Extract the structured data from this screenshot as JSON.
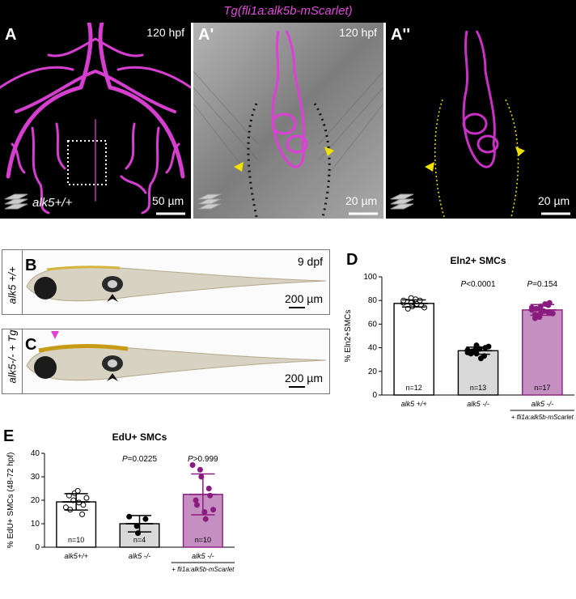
{
  "header": {
    "title": "Tg(fli1a:alk5b-mScarlet)"
  },
  "panels_top": {
    "A": {
      "label": "A",
      "time": "120 hpf",
      "genotype": "alk5+/+",
      "scale": "50 µm"
    },
    "A1": {
      "label": "A'",
      "time": "120 hpf",
      "scale": "20 µm"
    },
    "A2": {
      "label": "A''",
      "scale": "20 µm"
    }
  },
  "fish": {
    "B": {
      "label": "B",
      "side": "alk5 +/+",
      "age": "9 dpf",
      "scale": "200 µm"
    },
    "C": {
      "label": "C",
      "side": "alk5-/- + Tg",
      "scale": "200 µm"
    }
  },
  "colors": {
    "magenta": "#d63ed0",
    "purple": "#8b1c7f",
    "lightpurple": "#c58fc2",
    "gray": "#d9d9d9",
    "arrow_yellow": "#f2e000"
  },
  "chart_data": [
    {
      "panel": "D",
      "type": "bar",
      "title": "Eln2+ SMCs",
      "ylabel": "% Eln2+SMCs",
      "ylim": [
        0,
        100
      ],
      "yticks": [
        "0",
        "20",
        "40",
        "60",
        "80",
        "100"
      ],
      "categories": [
        "alk5 +/+",
        "alk5 -/-",
        "alk5 -/-"
      ],
      "category_sub": [
        "",
        "",
        "+ fli1a:alk5b-mScarlet"
      ],
      "values": [
        77.5,
        37.5,
        72
      ],
      "errors": [
        3,
        3,
        4.5
      ],
      "n_labels": [
        "n=12",
        "n=13",
        "n=17"
      ],
      "pvalues": [
        "",
        "P<0.0001",
        "P=0.154"
      ],
      "points": [
        [
          78,
          82,
          75,
          80,
          76,
          79,
          73,
          81,
          77,
          74,
          80,
          78
        ],
        [
          38,
          36,
          42,
          33,
          40,
          35,
          37,
          39,
          31,
          41,
          36,
          38,
          35
        ],
        [
          72,
          68,
          75,
          70,
          78,
          65,
          73,
          71,
          77,
          69,
          74,
          66,
          72,
          76,
          70,
          68,
          73
        ]
      ]
    },
    {
      "panel": "E",
      "type": "bar",
      "title": "EdU+ SMCs",
      "ylabel": "% EdU+ SMCs (48-72 hpf)",
      "ylim": [
        0,
        40
      ],
      "yticks": [
        "0",
        "10",
        "20",
        "30",
        "40"
      ],
      "categories": [
        "alk5+/+",
        "alk5 -/-",
        "alk5 -/-"
      ],
      "category_sub": [
        "",
        "",
        "+ fli1a:alk5b-mScarlet"
      ],
      "values": [
        19.3,
        10,
        22.5
      ],
      "errors": [
        3.5,
        3.5,
        8.7
      ],
      "n_labels": [
        "n=10",
        "n=4",
        "n=10"
      ],
      "pvalues": [
        "",
        "P=0.0225",
        "P>0.999"
      ],
      "points": [
        [
          17,
          20,
          23,
          14,
          18,
          22,
          16,
          24,
          19,
          21
        ],
        [
          13,
          9,
          6,
          12
        ],
        [
          35,
          33,
          30,
          25,
          22,
          20,
          18,
          15,
          12,
          16
        ]
      ]
    }
  ]
}
